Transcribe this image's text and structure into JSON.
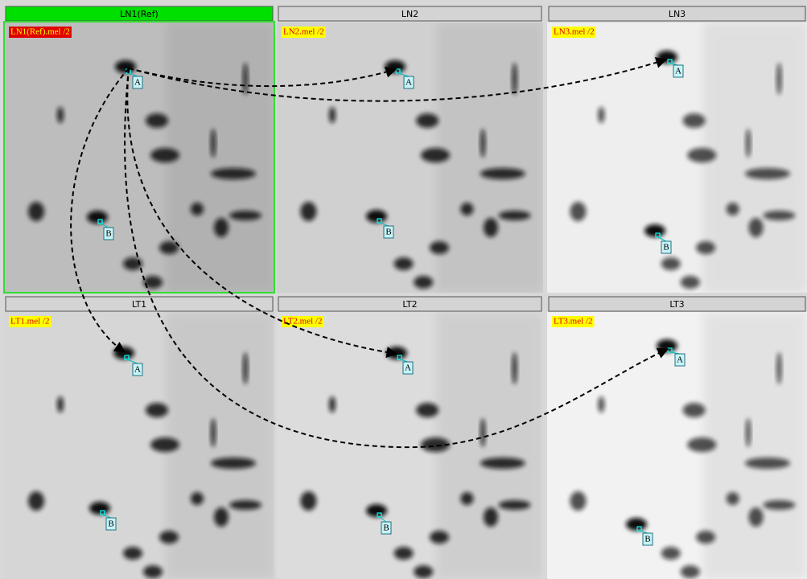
{
  "panels": [
    {
      "title": "LN1(Ref)",
      "file_label": "LN1(Ref).mel /2",
      "markers": [
        "A",
        "B"
      ]
    },
    {
      "title": "LN2",
      "file_label": "LN2.mel /2",
      "markers": [
        "A",
        "B"
      ]
    },
    {
      "title": "LN3",
      "file_label": "LN3.mel /2",
      "markers": [
        "A",
        "B"
      ]
    },
    {
      "title": "LT1",
      "file_label": "LT1.mel /2",
      "markers": [
        "A",
        "B"
      ]
    },
    {
      "title": "LT2",
      "file_label": "LT2.mel /2",
      "markers": [
        "A",
        "B"
      ]
    },
    {
      "title": "LT3",
      "file_label": "LT3.mel /2",
      "markers": [
        "A",
        "B"
      ]
    }
  ]
}
